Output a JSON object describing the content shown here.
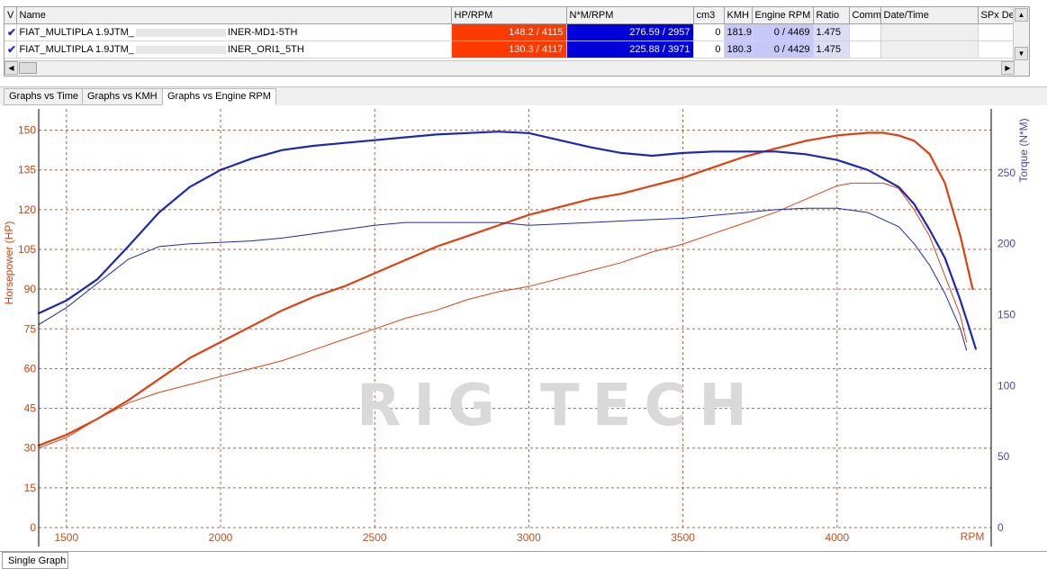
{
  "table": {
    "headers": [
      "V",
      "Name",
      "HP/RPM",
      "N*M/RPM",
      "cm3",
      "KMH",
      "Engine RPM",
      "Ratio",
      "Comm",
      "Date/Time",
      "SPx De"
    ],
    "rows": [
      {
        "name_a": "FIAT_MULTIPLA 1.9JTM_",
        "name_b": "INER-MD1-5TH",
        "hp": "148.2 / 4115",
        "tq": "276.59 / 2957",
        "cm3": "0",
        "kmh": "181.9",
        "rpm": "0 / 4469",
        "ratio": "1.475"
      },
      {
        "name_a": "FIAT_MULTIPLA 1.9JTM_",
        "name_b": "INER_ORI1_5TH",
        "hp": "130.3 / 4117",
        "tq": "225.88 / 3971",
        "cm3": "0",
        "kmh": "180.3",
        "rpm": "0 / 4429",
        "ratio": "1.475"
      }
    ]
  },
  "tabs": [
    "Graphs vs Time",
    "Graphs vs KMH",
    "Graphs vs Engine RPM"
  ],
  "active_tab": "Graphs vs Engine RPM",
  "bottom_tab": "Single Graph",
  "watermark": "RIG TECH",
  "icons": {
    "check": "checkmark-icon",
    "scroll_up": "arrow-up-icon",
    "scroll_down": "arrow-down-icon",
    "scroll_left": "arrow-left-icon",
    "scroll_right": "arrow-right-icon"
  },
  "colors": {
    "hp": "#e04010",
    "torque": "#1c28b0",
    "grid": "#c06030"
  },
  "chart_data": {
    "type": "line",
    "xlabel": "RPM",
    "ylabel_left": "Horsepower (HP)",
    "ylabel_right": "Torque (N*M)",
    "x_ticks": [
      1500,
      2000,
      2500,
      3000,
      3500,
      4000
    ],
    "y_left_ticks": [
      0,
      15,
      30,
      45,
      60,
      75,
      90,
      105,
      120,
      135,
      150
    ],
    "y_right_ticks": [
      0,
      50,
      100,
      150,
      200,
      250
    ],
    "xlim": [
      1410,
      4500
    ],
    "ylim_left": [
      0,
      158
    ],
    "ylim_right": [
      0,
      295
    ],
    "grid": true,
    "series": [
      {
        "axis": "left",
        "width": 2.2,
        "color": "#e04010",
        "x": [
          1410,
          1500,
          1600,
          1700,
          1800,
          1900,
          2000,
          2100,
          2200,
          2300,
          2400,
          2500,
          2600,
          2700,
          2800,
          2900,
          3000,
          3100,
          3200,
          3300,
          3400,
          3500,
          3600,
          3700,
          3800,
          3900,
          4000,
          4100,
          4150,
          4200,
          4250,
          4300,
          4350,
          4400,
          4420,
          4440
        ],
        "y": [
          31,
          35,
          41,
          48,
          56,
          64,
          70,
          76,
          82,
          87,
          91,
          96,
          101,
          106,
          110,
          114,
          118,
          121,
          124,
          126,
          129,
          132,
          136,
          140,
          143,
          146,
          148,
          149,
          149,
          148,
          146,
          141,
          130,
          110,
          100,
          90
        ]
      },
      {
        "axis": "left",
        "width": 1,
        "color": "#e04010",
        "x": [
          1410,
          1500,
          1600,
          1700,
          1800,
          1900,
          2000,
          2100,
          2200,
          2300,
          2400,
          2500,
          2600,
          2700,
          2800,
          2900,
          3000,
          3100,
          3200,
          3300,
          3400,
          3500,
          3600,
          3700,
          3800,
          3900,
          4000,
          4050,
          4100,
          4150,
          4200,
          4250,
          4300,
          4350,
          4400,
          4420
        ],
        "y": [
          30,
          34,
          41,
          47,
          51,
          54,
          57,
          60,
          63,
          67,
          71,
          75,
          79,
          82,
          86,
          89,
          91,
          94,
          97,
          100,
          104,
          107,
          111,
          115,
          119,
          124,
          129,
          130,
          130,
          130,
          128,
          120,
          110,
          95,
          80,
          70
        ]
      },
      {
        "axis": "right",
        "width": 2.2,
        "color": "#1c28b0",
        "x": [
          1410,
          1500,
          1600,
          1700,
          1800,
          1900,
          2000,
          2100,
          2200,
          2300,
          2400,
          2500,
          2600,
          2700,
          2800,
          2900,
          3000,
          3100,
          3200,
          3300,
          3400,
          3500,
          3600,
          3700,
          3800,
          3900,
          4000,
          4100,
          4200,
          4250,
          4300,
          4350,
          4400,
          4430,
          4450
        ],
        "y": [
          151,
          160,
          175,
          198,
          222,
          240,
          252,
          260,
          266,
          269,
          271,
          273,
          275,
          277,
          278,
          279,
          278,
          273,
          268,
          264,
          262,
          264,
          265,
          265,
          265,
          263,
          259,
          252,
          240,
          228,
          210,
          190,
          160,
          140,
          126
        ]
      },
      {
        "axis": "right",
        "width": 1,
        "color": "#1c28b0",
        "x": [
          1410,
          1500,
          1600,
          1700,
          1800,
          1900,
          2000,
          2100,
          2200,
          2300,
          2400,
          2500,
          2600,
          2700,
          2800,
          2900,
          3000,
          3100,
          3200,
          3300,
          3400,
          3500,
          3600,
          3700,
          3800,
          3900,
          4000,
          4100,
          4200,
          4250,
          4300,
          4350,
          4400,
          4420
        ],
        "y": [
          143,
          155,
          172,
          189,
          198,
          200,
          201,
          202,
          204,
          207,
          210,
          213,
          215,
          215,
          215,
          215,
          213,
          214,
          215,
          216,
          217,
          218,
          220,
          222,
          224,
          225,
          225,
          222,
          212,
          200,
          185,
          165,
          140,
          125
        ]
      }
    ]
  }
}
